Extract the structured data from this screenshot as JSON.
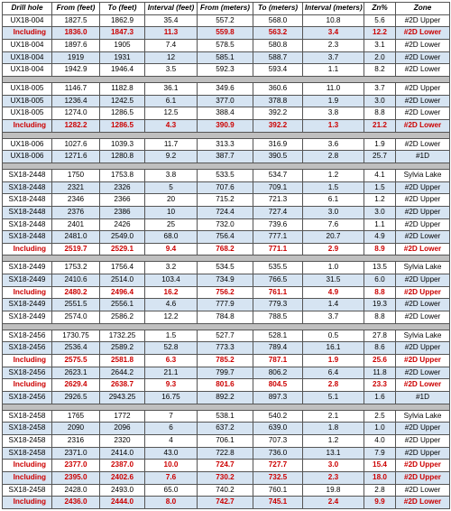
{
  "columns": [
    "Drill hole",
    "From (feet)",
    "To (feet)",
    "Interval (feet)",
    "From (meters)",
    "To (meters)",
    "Interval (meters)",
    "Zn%",
    "Zone"
  ],
  "col_classes": [
    "col-drill",
    "col-ff",
    "col-tf",
    "col-if",
    "col-fm",
    "col-tm",
    "col-im",
    "col-zn",
    "col-zone"
  ],
  "colors": {
    "alt_row_bg": "#d6e4f2",
    "highlight_text": "#cc0000",
    "spacer_bg": "#bfbfbf",
    "border": "#555555",
    "page_bg": "#ffffff"
  },
  "rows": [
    {
      "alt": false,
      "hl": false,
      "cells": [
        "UX18-004",
        "1827.5",
        "1862.9",
        "35.4",
        "557.2",
        "568.0",
        "10.8",
        "5.6",
        "#2D Upper"
      ]
    },
    {
      "alt": true,
      "hl": true,
      "cells": [
        "Including",
        "1836.0",
        "1847.3",
        "11.3",
        "559.8",
        "563.2",
        "3.4",
        "12.2",
        "#2D Lower"
      ]
    },
    {
      "alt": false,
      "hl": false,
      "cells": [
        "UX18-004",
        "1897.6",
        "1905",
        "7.4",
        "578.5",
        "580.8",
        "2.3",
        "3.1",
        "#2D Lower"
      ]
    },
    {
      "alt": true,
      "hl": false,
      "cells": [
        "UX18-004",
        "1919",
        "1931",
        "12",
        "585.1",
        "588.7",
        "3.7",
        "2.0",
        "#2D Lower"
      ]
    },
    {
      "alt": false,
      "hl": false,
      "cells": [
        "UX18-004",
        "1942.9",
        "1946.4",
        "3.5",
        "592.3",
        "593.4",
        "1.1",
        "8.2",
        "#2D Lower"
      ]
    },
    {
      "spacer": true
    },
    {
      "alt": false,
      "hl": false,
      "cells": [
        "UX18-005",
        "1146.7",
        "1182.8",
        "36.1",
        "349.6",
        "360.6",
        "11.0",
        "3.7",
        "#2D Upper"
      ]
    },
    {
      "alt": true,
      "hl": false,
      "cells": [
        "UX18-005",
        "1236.4",
        "1242.5",
        "6.1",
        "377.0",
        "378.8",
        "1.9",
        "3.0",
        "#2D Lower"
      ]
    },
    {
      "alt": false,
      "hl": false,
      "cells": [
        "UX18-005",
        "1274.0",
        "1286.5",
        "12.5",
        "388.4",
        "392.2",
        "3.8",
        "8.8",
        "#2D Lower"
      ]
    },
    {
      "alt": true,
      "hl": true,
      "cells": [
        "Including",
        "1282.2",
        "1286.5",
        "4.3",
        "390.9",
        "392.2",
        "1.3",
        "21.2",
        "#2D Lower"
      ]
    },
    {
      "spacer": true
    },
    {
      "alt": false,
      "hl": false,
      "cells": [
        "UX18-006",
        "1027.6",
        "1039.3",
        "11.7",
        "313.3",
        "316.9",
        "3.6",
        "1.9",
        "#2D Lower"
      ]
    },
    {
      "alt": true,
      "hl": false,
      "cells": [
        "UX18-006",
        "1271.6",
        "1280.8",
        "9.2",
        "387.7",
        "390.5",
        "2.8",
        "25.7",
        "#1D"
      ]
    },
    {
      "spacer": true
    },
    {
      "alt": false,
      "hl": false,
      "cells": [
        "SX18-2448",
        "1750",
        "1753.8",
        "3.8",
        "533.5",
        "534.7",
        "1.2",
        "4.1",
        "Sylvia Lake"
      ]
    },
    {
      "alt": true,
      "hl": false,
      "cells": [
        "SX18-2448",
        "2321",
        "2326",
        "5",
        "707.6",
        "709.1",
        "1.5",
        "1.5",
        "#2D Upper"
      ]
    },
    {
      "alt": false,
      "hl": false,
      "cells": [
        "SX18-2448",
        "2346",
        "2366",
        "20",
        "715.2",
        "721.3",
        "6.1",
        "1.2",
        "#2D Upper"
      ]
    },
    {
      "alt": true,
      "hl": false,
      "cells": [
        "SX18-2448",
        "2376",
        "2386",
        "10",
        "724.4",
        "727.4",
        "3.0",
        "3.0",
        "#2D Upper"
      ]
    },
    {
      "alt": false,
      "hl": false,
      "cells": [
        "SX18-2448",
        "2401",
        "2426",
        "25",
        "732.0",
        "739.6",
        "7.6",
        "1.1",
        "#2D Upper"
      ]
    },
    {
      "alt": true,
      "hl": false,
      "cells": [
        "SX18-2448",
        "2481.0",
        "2549.0",
        "68.0",
        "756.4",
        "777.1",
        "20.7",
        "4.9",
        "#2D Lower"
      ]
    },
    {
      "alt": false,
      "hl": true,
      "cells": [
        "Including",
        "2519.7",
        "2529.1",
        "9.4",
        "768.2",
        "771.1",
        "2.9",
        "8.9",
        "#2D Lower"
      ]
    },
    {
      "spacer": true
    },
    {
      "alt": false,
      "hl": false,
      "cells": [
        "SX18-2449",
        "1753.2",
        "1756.4",
        "3.2",
        "534.5",
        "535.5",
        "1.0",
        "13.5",
        "Sylvia Lake"
      ]
    },
    {
      "alt": true,
      "hl": false,
      "cells": [
        "SX18-2449",
        "2410.6",
        "2514.0",
        "103.4",
        "734.9",
        "766.5",
        "31.5",
        "6.0",
        "#2D Upper"
      ]
    },
    {
      "alt": false,
      "hl": true,
      "cells": [
        "Including",
        "2480.2",
        "2496.4",
        "16.2",
        "756.2",
        "761.1",
        "4.9",
        "8.8",
        "#2D Upper"
      ]
    },
    {
      "alt": true,
      "hl": false,
      "cells": [
        "SX18-2449",
        "2551.5",
        "2556.1",
        "4.6",
        "777.9",
        "779.3",
        "1.4",
        "19.3",
        "#2D Lower"
      ]
    },
    {
      "alt": false,
      "hl": false,
      "cells": [
        "SX18-2449",
        "2574.0",
        "2586.2",
        "12.2",
        "784.8",
        "788.5",
        "3.7",
        "8.8",
        "#2D Lower"
      ]
    },
    {
      "spacer": true
    },
    {
      "alt": false,
      "hl": false,
      "cells": [
        "SX18-2456",
        "1730.75",
        "1732.25",
        "1.5",
        "527.7",
        "528.1",
        "0.5",
        "27.8",
        "Sylvia Lake"
      ]
    },
    {
      "alt": true,
      "hl": false,
      "cells": [
        "SX18-2456",
        "2536.4",
        "2589.2",
        "52.8",
        "773.3",
        "789.4",
        "16.1",
        "8.6",
        "#2D Upper"
      ]
    },
    {
      "alt": false,
      "hl": true,
      "cells": [
        "Including",
        "2575.5",
        "2581.8",
        "6.3",
        "785.2",
        "787.1",
        "1.9",
        "25.6",
        "#2D Upper"
      ]
    },
    {
      "alt": true,
      "hl": false,
      "cells": [
        "SX18-2456",
        "2623.1",
        "2644.2",
        "21.1",
        "799.7",
        "806.2",
        "6.4",
        "11.8",
        "#2D Lower"
      ]
    },
    {
      "alt": false,
      "hl": true,
      "cells": [
        "Including",
        "2629.4",
        "2638.7",
        "9.3",
        "801.6",
        "804.5",
        "2.8",
        "23.3",
        "#2D Lower"
      ]
    },
    {
      "alt": true,
      "hl": false,
      "cells": [
        "SX18-2456",
        "2926.5",
        "2943.25",
        "16.75",
        "892.2",
        "897.3",
        "5.1",
        "1.6",
        "#1D"
      ]
    },
    {
      "spacer": true
    },
    {
      "alt": false,
      "hl": false,
      "cells": [
        "SX18-2458",
        "1765",
        "1772",
        "7",
        "538.1",
        "540.2",
        "2.1",
        "2.5",
        "Sylvia Lake"
      ]
    },
    {
      "alt": true,
      "hl": false,
      "cells": [
        "SX18-2458",
        "2090",
        "2096",
        "6",
        "637.2",
        "639.0",
        "1.8",
        "1.0",
        "#2D Upper"
      ]
    },
    {
      "alt": false,
      "hl": false,
      "cells": [
        "SX18-2458",
        "2316",
        "2320",
        "4",
        "706.1",
        "707.3",
        "1.2",
        "4.0",
        "#2D Upper"
      ]
    },
    {
      "alt": true,
      "hl": false,
      "cells": [
        "SX18-2458",
        "2371.0",
        "2414.0",
        "43.0",
        "722.8",
        "736.0",
        "13.1",
        "7.9",
        "#2D Upper"
      ]
    },
    {
      "alt": false,
      "hl": true,
      "cells": [
        "Including",
        "2377.0",
        "2387.0",
        "10.0",
        "724.7",
        "727.7",
        "3.0",
        "15.4",
        "#2D Upper"
      ]
    },
    {
      "alt": true,
      "hl": true,
      "cells": [
        "Including",
        "2395.0",
        "2402.6",
        "7.6",
        "730.2",
        "732.5",
        "2.3",
        "18.0",
        "#2D Upper"
      ]
    },
    {
      "alt": false,
      "hl": false,
      "cells": [
        "SX18-2458",
        "2428.0",
        "2493.0",
        "65.0",
        "740.2",
        "760.1",
        "19.8",
        "2.8",
        "#2D Lower"
      ]
    },
    {
      "alt": true,
      "hl": true,
      "cells": [
        "Including",
        "2436.0",
        "2444.0",
        "8.0",
        "742.7",
        "745.1",
        "2.4",
        "9.9",
        "#2D Lower"
      ]
    }
  ]
}
